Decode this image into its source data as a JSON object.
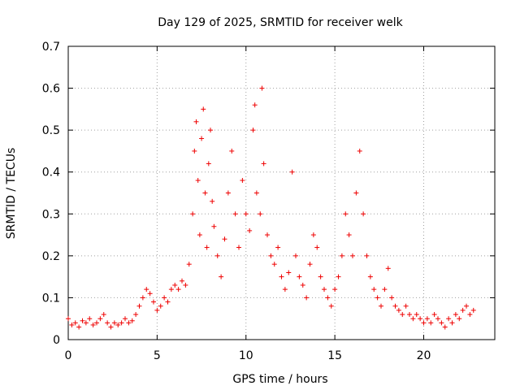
{
  "chart_data": {
    "type": "scatter",
    "title": "Day 129 of 2025, SRMTID for receiver welk",
    "xlabel": "GPS time / hours",
    "ylabel": "SRMTID / TECUs",
    "xlim": [
      0,
      24
    ],
    "ylim": [
      0,
      0.7
    ],
    "x_ticks": [
      "0",
      "5",
      "10",
      "15",
      "20"
    ],
    "y_ticks": [
      "0",
      "0.1",
      "0.2",
      "0.3",
      "0.4",
      "0.5",
      "0.6",
      "0.7"
    ],
    "grid": true,
    "legend": "none",
    "marker": "+",
    "color": "#ee0000",
    "series": [
      {
        "name": "SRMTID",
        "points": [
          [
            0.0,
            0.05
          ],
          [
            0.2,
            0.035
          ],
          [
            0.4,
            0.04
          ],
          [
            0.6,
            0.03
          ],
          [
            0.8,
            0.045
          ],
          [
            1.0,
            0.04
          ],
          [
            1.2,
            0.05
          ],
          [
            1.4,
            0.035
          ],
          [
            1.6,
            0.04
          ],
          [
            1.8,
            0.05
          ],
          [
            2.0,
            0.06
          ],
          [
            2.2,
            0.04
          ],
          [
            2.4,
            0.03
          ],
          [
            2.6,
            0.04
          ],
          [
            2.8,
            0.035
          ],
          [
            3.0,
            0.04
          ],
          [
            3.2,
            0.05
          ],
          [
            3.4,
            0.04
          ],
          [
            3.6,
            0.045
          ],
          [
            3.8,
            0.06
          ],
          [
            4.0,
            0.08
          ],
          [
            4.2,
            0.1
          ],
          [
            4.4,
            0.12
          ],
          [
            4.6,
            0.11
          ],
          [
            4.8,
            0.09
          ],
          [
            5.0,
            0.07
          ],
          [
            5.2,
            0.08
          ],
          [
            5.4,
            0.1
          ],
          [
            5.6,
            0.09
          ],
          [
            5.8,
            0.12
          ],
          [
            6.0,
            0.13
          ],
          [
            6.2,
            0.12
          ],
          [
            6.4,
            0.14
          ],
          [
            6.6,
            0.13
          ],
          [
            6.8,
            0.18
          ],
          [
            7.0,
            0.3
          ],
          [
            7.1,
            0.45
          ],
          [
            7.2,
            0.52
          ],
          [
            7.3,
            0.38
          ],
          [
            7.4,
            0.25
          ],
          [
            7.5,
            0.48
          ],
          [
            7.6,
            0.55
          ],
          [
            7.7,
            0.35
          ],
          [
            7.8,
            0.22
          ],
          [
            7.9,
            0.42
          ],
          [
            8.0,
            0.5
          ],
          [
            8.1,
            0.33
          ],
          [
            8.2,
            0.27
          ],
          [
            8.4,
            0.2
          ],
          [
            8.6,
            0.15
          ],
          [
            8.8,
            0.24
          ],
          [
            9.0,
            0.35
          ],
          [
            9.2,
            0.45
          ],
          [
            9.4,
            0.3
          ],
          [
            9.6,
            0.22
          ],
          [
            9.8,
            0.38
          ],
          [
            10.0,
            0.3
          ],
          [
            10.2,
            0.26
          ],
          [
            10.4,
            0.5
          ],
          [
            10.5,
            0.56
          ],
          [
            10.6,
            0.35
          ],
          [
            10.8,
            0.3
          ],
          [
            10.9,
            0.6
          ],
          [
            11.0,
            0.42
          ],
          [
            11.2,
            0.25
          ],
          [
            11.4,
            0.2
          ],
          [
            11.6,
            0.18
          ],
          [
            11.8,
            0.22
          ],
          [
            12.0,
            0.15
          ],
          [
            12.2,
            0.12
          ],
          [
            12.4,
            0.16
          ],
          [
            12.6,
            0.4
          ],
          [
            12.8,
            0.2
          ],
          [
            13.0,
            0.15
          ],
          [
            13.2,
            0.13
          ],
          [
            13.4,
            0.1
          ],
          [
            13.6,
            0.18
          ],
          [
            13.8,
            0.25
          ],
          [
            14.0,
            0.22
          ],
          [
            14.2,
            0.15
          ],
          [
            14.4,
            0.12
          ],
          [
            14.6,
            0.1
          ],
          [
            14.8,
            0.08
          ],
          [
            15.0,
            0.12
          ],
          [
            15.2,
            0.15
          ],
          [
            15.4,
            0.2
          ],
          [
            15.6,
            0.3
          ],
          [
            15.8,
            0.25
          ],
          [
            16.0,
            0.2
          ],
          [
            16.2,
            0.35
          ],
          [
            16.4,
            0.45
          ],
          [
            16.6,
            0.3
          ],
          [
            16.8,
            0.2
          ],
          [
            17.0,
            0.15
          ],
          [
            17.2,
            0.12
          ],
          [
            17.4,
            0.1
          ],
          [
            17.6,
            0.08
          ],
          [
            17.8,
            0.12
          ],
          [
            18.0,
            0.17
          ],
          [
            18.2,
            0.1
          ],
          [
            18.4,
            0.08
          ],
          [
            18.6,
            0.07
          ],
          [
            18.8,
            0.06
          ],
          [
            19.0,
            0.08
          ],
          [
            19.2,
            0.06
          ],
          [
            19.4,
            0.05
          ],
          [
            19.6,
            0.06
          ],
          [
            19.8,
            0.05
          ],
          [
            20.0,
            0.04
          ],
          [
            20.2,
            0.05
          ],
          [
            20.4,
            0.04
          ],
          [
            20.6,
            0.06
          ],
          [
            20.8,
            0.05
          ],
          [
            21.0,
            0.04
          ],
          [
            21.2,
            0.03
          ],
          [
            21.4,
            0.05
          ],
          [
            21.6,
            0.04
          ],
          [
            21.8,
            0.06
          ],
          [
            22.0,
            0.05
          ],
          [
            22.2,
            0.07
          ],
          [
            22.4,
            0.08
          ],
          [
            22.6,
            0.06
          ],
          [
            22.8,
            0.07
          ]
        ]
      }
    ]
  }
}
